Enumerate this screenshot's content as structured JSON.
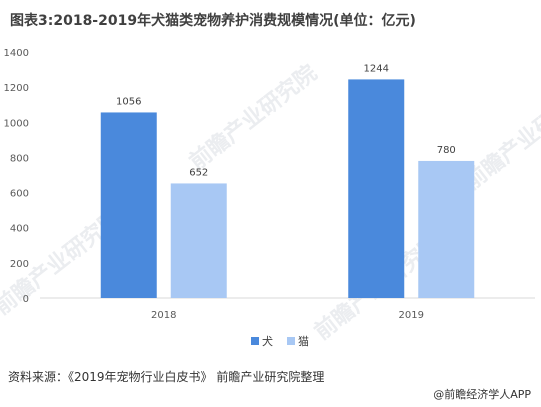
{
  "title": "图表3:2018-2019年犬猫类宠物养护消费规模情况(单位：亿元)",
  "source": "资料来源：《2019年宠物行业白皮书》 前瞻产业研究院整理",
  "brand": "@前瞻经济学人APP",
  "watermark": "前瞻产业研究院",
  "chart_data": {
    "type": "bar",
    "categories": [
      "2018",
      "2019"
    ],
    "series": [
      {
        "name": "犬",
        "values": [
          1056,
          1244
        ],
        "color": "#4a89dc"
      },
      {
        "name": "猫",
        "values": [
          652,
          780
        ],
        "color": "#a8c8f4"
      }
    ],
    "title": "图表3:2018-2019年犬猫类宠物养护消费规模情况(单位：亿元)",
    "xlabel": "",
    "ylabel": "",
    "ylim": [
      0,
      1400
    ],
    "yticks": [
      0,
      200,
      400,
      600,
      800,
      1000,
      1200,
      1400
    ],
    "legend": "bottom",
    "grid": false
  }
}
